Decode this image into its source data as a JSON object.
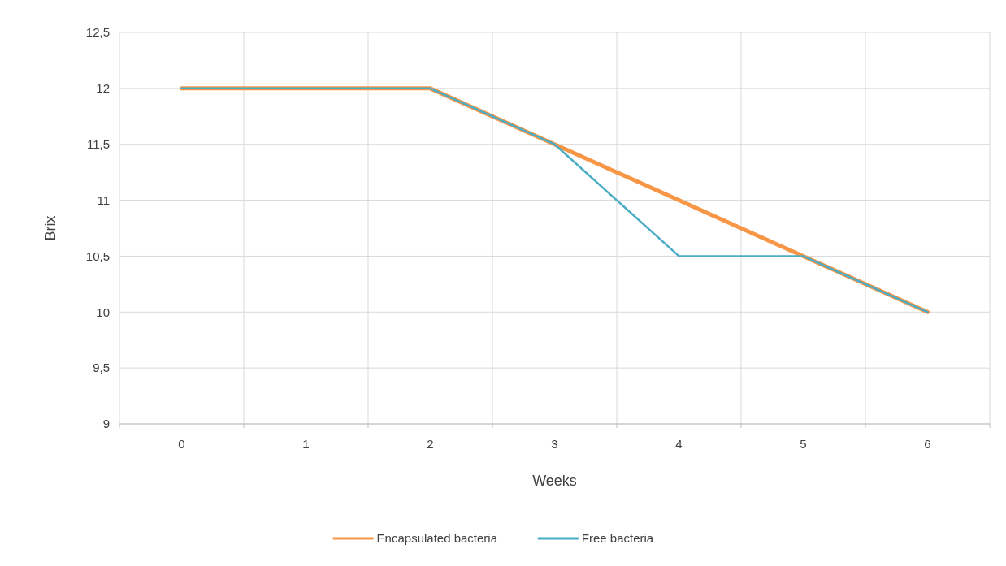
{
  "chart_data": {
    "type": "line",
    "xlabel": "Weeks",
    "ylabel": "Brix",
    "categories": [
      "0",
      "1",
      "2",
      "3",
      "4",
      "5",
      "6"
    ],
    "series": [
      {
        "name": "Encapsulated bacteria",
        "color": "#f79646",
        "values": [
          12,
          12,
          12,
          11.5,
          11,
          10.5,
          10
        ]
      },
      {
        "name": "Free bacteria",
        "color": "#4bacc6",
        "values": [
          12,
          12,
          12,
          11.5,
          10.5,
          10.5,
          10
        ]
      }
    ],
    "ylim": [
      9,
      12.5
    ],
    "yticks": [
      9,
      {
        "value": 9.5,
        "label": "9,5"
      },
      10,
      {
        "value": 10.5,
        "label": "10,5"
      },
      11,
      {
        "value": 11.5,
        "label": "11,5"
      },
      12,
      {
        "value": 12.5,
        "label": "12,5"
      }
    ],
    "grid": true,
    "legend": "bottom",
    "marker": "none",
    "line_style": "solid"
  }
}
